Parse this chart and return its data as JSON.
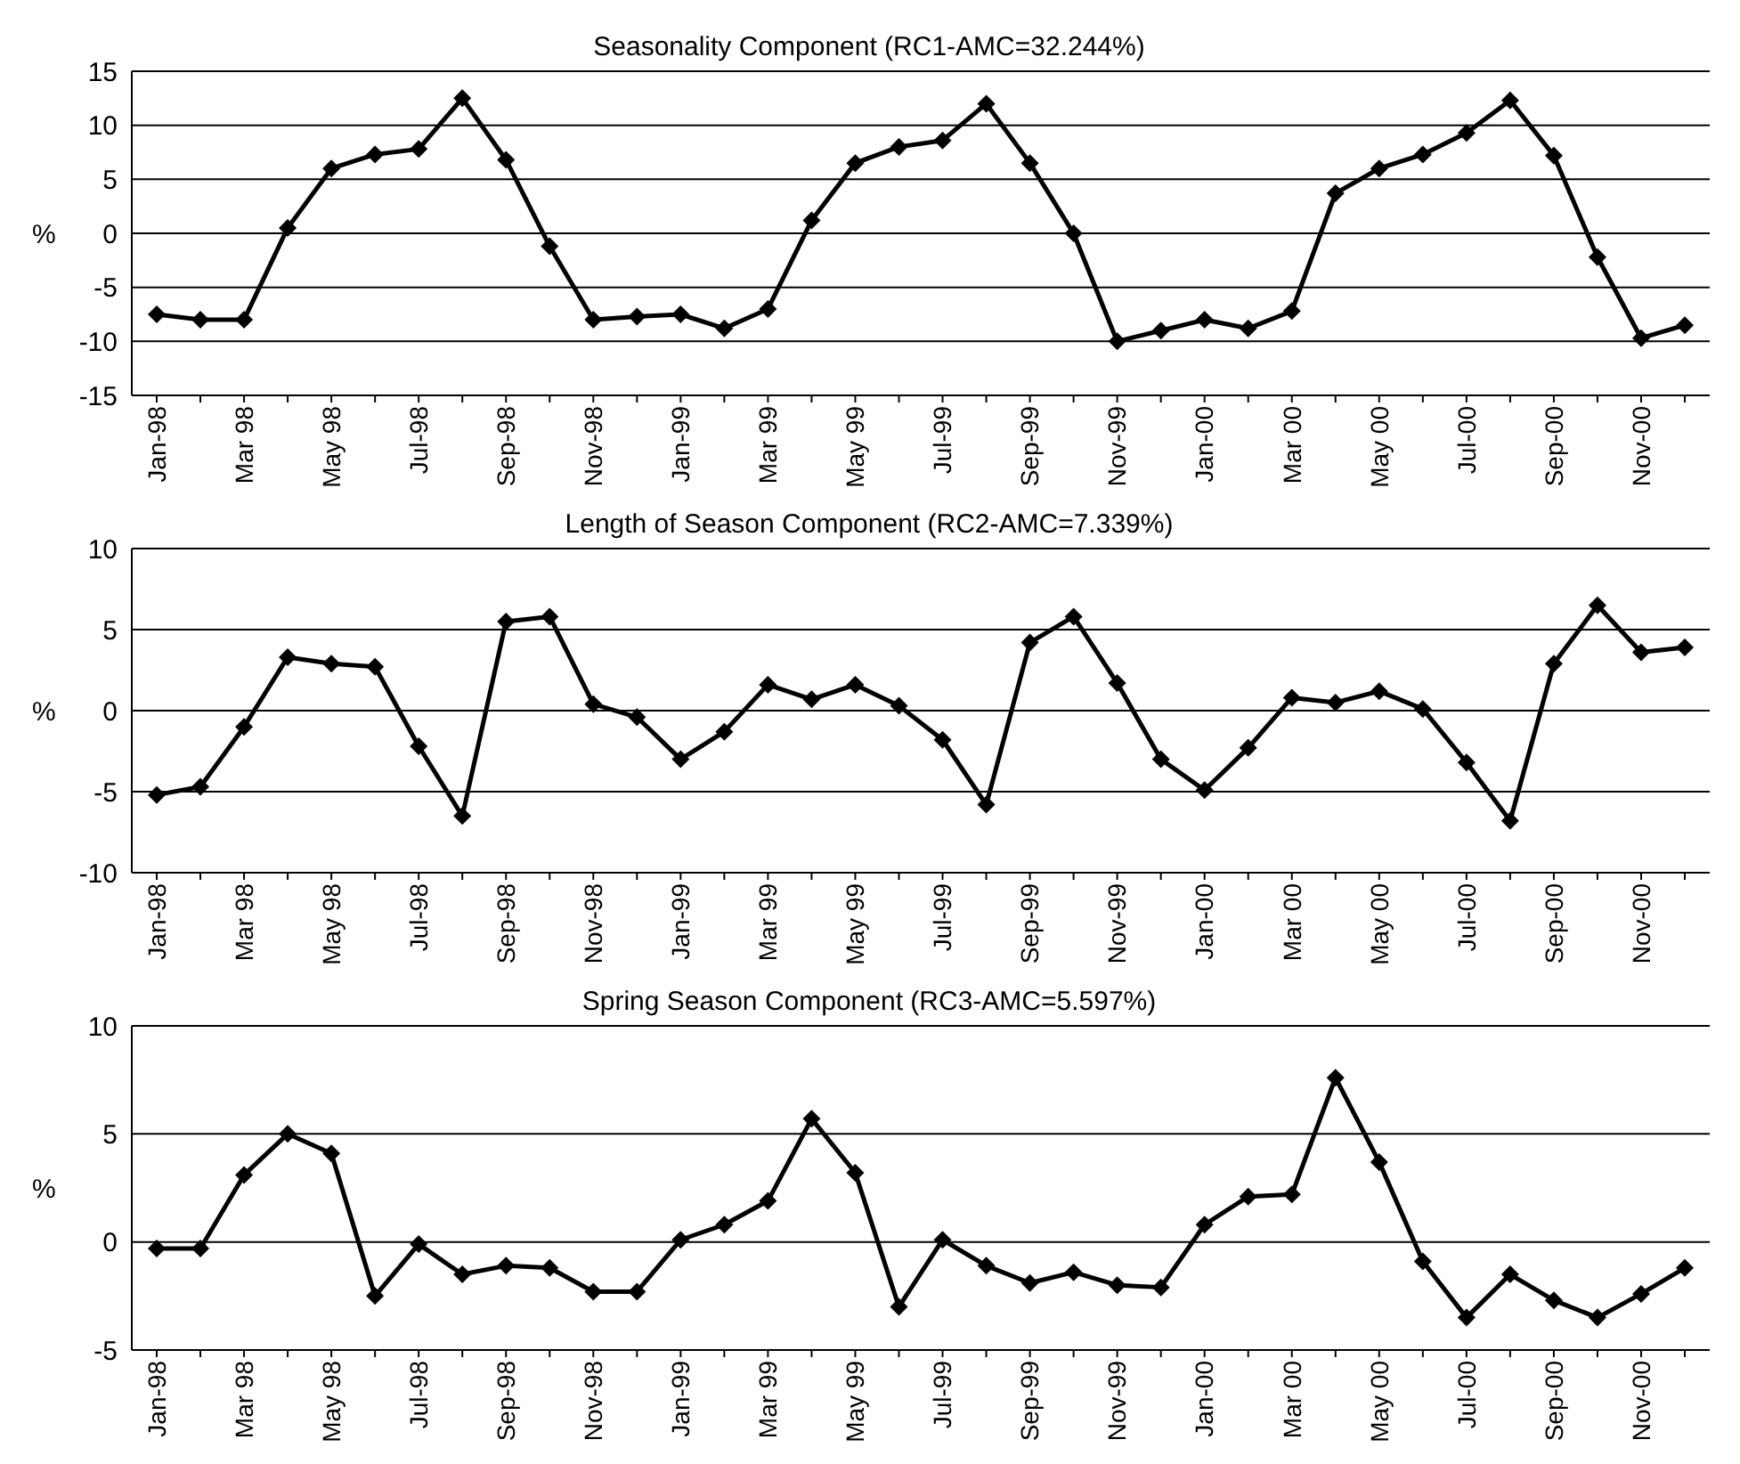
{
  "chart_data": [
    {
      "type": "line",
      "title": "Seasonality Component (RC1-AMC=32.244%)",
      "ylabel": "%",
      "categories": [
        "Jan-98",
        null,
        "Mar 98",
        null,
        "May 98",
        null,
        "Jul-98",
        null,
        "Sep-98",
        null,
        "Nov-98",
        null,
        "Jan-99",
        null,
        "Mar 99",
        null,
        "May 99",
        null,
        "Jul-99",
        null,
        "Sep-99",
        null,
        "Nov-99",
        null,
        "Jan-00",
        null,
        "Mar 00",
        null,
        "May 00",
        null,
        "Jul-00",
        null,
        "Sep-00",
        null,
        "Nov-00",
        null
      ],
      "series": [
        {
          "color": "#000000",
          "values": [
            -7.5,
            -8,
            -8,
            0.5,
            6,
            7.3,
            7.8,
            12.5,
            6.8,
            -1.2,
            -8,
            -7.7,
            -7.5,
            -8.8,
            -7,
            1.2,
            6.5,
            8,
            8.6,
            12,
            6.5,
            0,
            -10,
            -9,
            -8,
            -8.8,
            -7.2,
            3.7,
            6,
            7.3,
            9.3,
            12.3,
            7.2,
            -2.2,
            -9.7,
            -8.5
          ]
        }
      ],
      "ylim": [
        -15,
        15
      ],
      "yticks": [
        -15,
        -10,
        -5,
        0,
        5,
        10,
        15
      ],
      "grid": "y",
      "marker": "diamond",
      "line_style": "solid"
    },
    {
      "type": "line",
      "title": "Length of Season Component (RC2-AMC=7.339%)",
      "ylabel": "%",
      "categories": [
        "Jan-98",
        null,
        "Mar 98",
        null,
        "May 98",
        null,
        "Jul-98",
        null,
        "Sep-98",
        null,
        "Nov-98",
        null,
        "Jan-99",
        null,
        "Mar 99",
        null,
        "May 99",
        null,
        "Jul-99",
        null,
        "Sep-99",
        null,
        "Nov-99",
        null,
        "Jan-00",
        null,
        "Mar 00",
        null,
        "May 00",
        null,
        "Jul-00",
        null,
        "Sep-00",
        null,
        "Nov-00",
        null
      ],
      "series": [
        {
          "color": "#000000",
          "values": [
            -5.2,
            -4.7,
            -1,
            3.3,
            2.9,
            2.7,
            -2.2,
            -6.5,
            5.5,
            5.8,
            0.4,
            -0.4,
            -3,
            -1.3,
            1.6,
            0.7,
            1.6,
            0.3,
            -1.8,
            -5.8,
            4.2,
            5.8,
            1.7,
            -3,
            -4.9,
            -2.3,
            0.8,
            0.5,
            1.2,
            0.1,
            -3.2,
            -6.8,
            2.9,
            6.5,
            3.6,
            3.9
          ]
        }
      ],
      "ylim": [
        -10,
        10
      ],
      "yticks": [
        -10,
        -5,
        0,
        5,
        10
      ],
      "grid": "y",
      "marker": "diamond",
      "line_style": "solid"
    },
    {
      "type": "line",
      "title": "Spring Season Component (RC3-AMC=5.597%)",
      "ylabel": "%",
      "categories": [
        "Jan-98",
        null,
        "Mar 98",
        null,
        "May 98",
        null,
        "Jul-98",
        null,
        "Sep-98",
        null,
        "Nov-98",
        null,
        "Jan-99",
        null,
        "Mar 99",
        null,
        "May 99",
        null,
        "Jul-99",
        null,
        "Sep-99",
        null,
        "Nov-99",
        null,
        "Jan-00",
        null,
        "Mar 00",
        null,
        "May 00",
        null,
        "Jul-00",
        null,
        "Sep-00",
        null,
        "Nov-00",
        null
      ],
      "series": [
        {
          "color": "#000000",
          "values": [
            -0.3,
            -0.3,
            3.1,
            5,
            4.1,
            -2.5,
            -0.1,
            -1.5,
            -1.1,
            -1.2,
            -2.3,
            -2.3,
            0.1,
            0.8,
            1.9,
            5.7,
            3.2,
            -3,
            0.1,
            -1.1,
            -1.9,
            -1.4,
            -2,
            -2.1,
            0.8,
            2.1,
            2.2,
            7.6,
            3.7,
            -0.9,
            -3.5,
            -1.5,
            -2.7,
            -3.5,
            -2.4,
            -1.2
          ]
        }
      ],
      "ylim": [
        -5,
        10
      ],
      "yticks": [
        -5,
        0,
        5,
        10
      ],
      "grid": "y",
      "marker": "diamond",
      "line_style": "solid"
    }
  ]
}
